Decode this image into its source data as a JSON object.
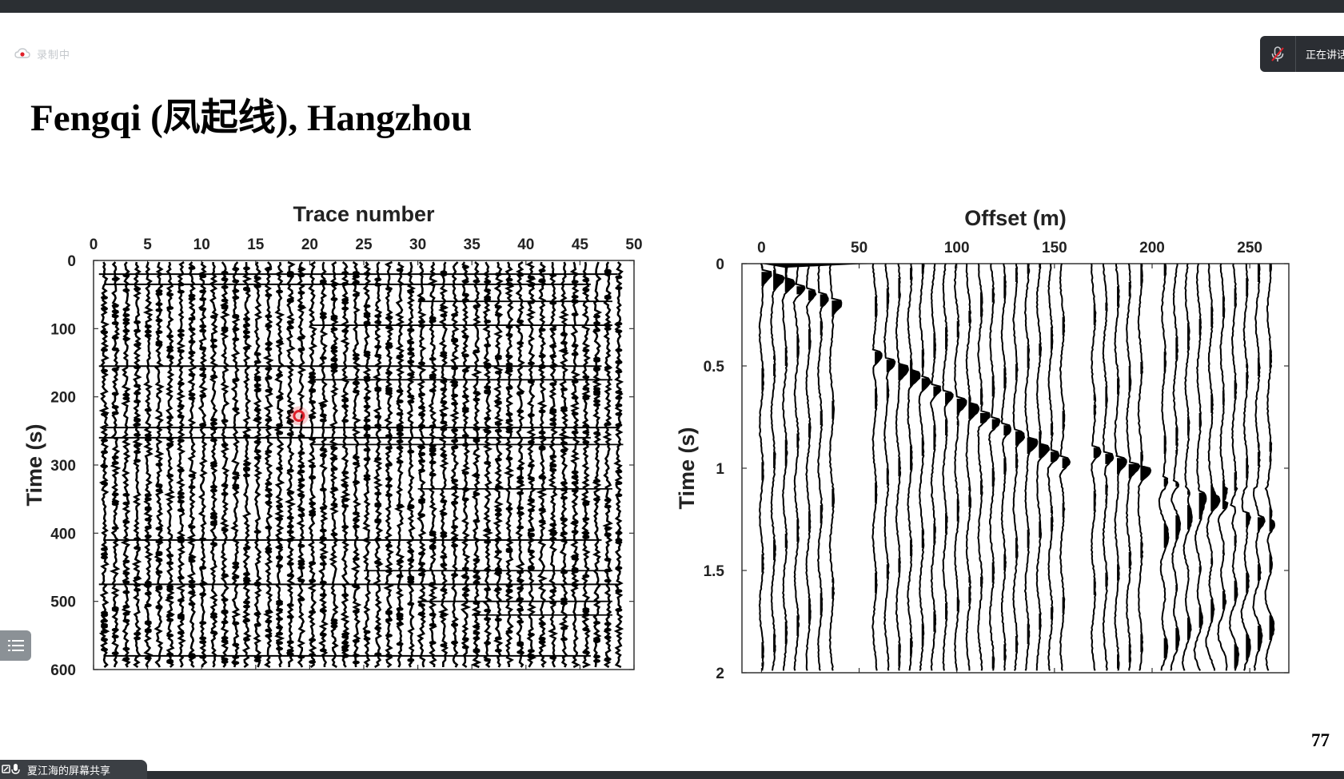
{
  "app": {
    "recording_label": "录制中",
    "speaker_label": "正在讲话",
    "share_label": "夏江海的屏幕共享"
  },
  "slide": {
    "title": "Fengqi (凤起线), Hangzhou",
    "page_number": "77"
  },
  "icons": {
    "recording": "cloud-record-icon",
    "speaker": "mic-muted-icon",
    "toc": "list-icon",
    "share": "screen-share-icon"
  },
  "colors": {
    "top_bar": "#2b2f33",
    "pointer": "#e0202a",
    "toc_button": "#8b9196"
  },
  "pointer": {
    "trace_number": 19,
    "time": 228
  },
  "chart_data": [
    {
      "type": "seismic-wiggle",
      "xlabel": "Trace number",
      "ylabel": "Time (s)",
      "xlim": [
        0,
        50
      ],
      "ylim": [
        0,
        600
      ],
      "xticks": [
        "0",
        "5",
        "10",
        "15",
        "20",
        "25",
        "30",
        "35",
        "40",
        "45",
        "50"
      ],
      "yticks": [
        "0",
        "100",
        "200",
        "300",
        "400",
        "500",
        "600"
      ],
      "y_reversed": true,
      "x_axis_position": "top",
      "traces": 48,
      "horizontal_events_time": [
        20,
        35,
        155,
        245,
        260,
        410,
        475,
        580
      ]
    },
    {
      "type": "seismic-wiggle",
      "xlabel": "Offset (m)",
      "ylabel": "Time (s)",
      "xlim": [
        -10,
        270
      ],
      "ylim": [
        0,
        2
      ],
      "xticks": [
        "0",
        "50",
        "100",
        "150",
        "200",
        "250"
      ],
      "yticks": [
        "0",
        "0.5",
        "1",
        "1.5",
        "2"
      ],
      "y_reversed": true,
      "x_axis_position": "top",
      "trace_offsets": [
        0,
        6,
        12,
        18,
        24,
        30,
        36,
        58,
        64,
        70,
        76,
        82,
        88,
        94,
        100,
        106,
        112,
        118,
        124,
        130,
        136,
        142,
        148,
        154,
        170,
        176,
        182,
        188,
        194,
        206,
        212,
        218,
        224,
        230,
        236,
        242,
        248,
        254,
        260
      ],
      "refraction_arrival": {
        "offset": [
          58,
          154
        ],
        "time": [
          0.45,
          0.97
        ]
      }
    }
  ]
}
